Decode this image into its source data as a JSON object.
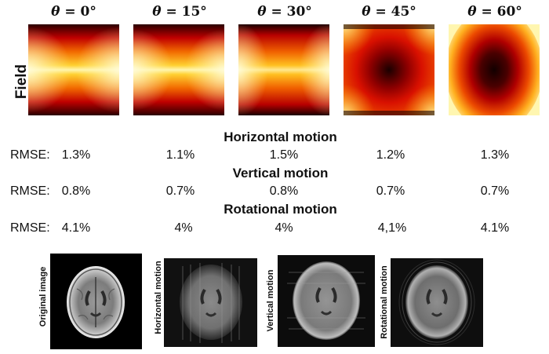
{
  "field_row": {
    "row_label": "Field",
    "theta_symbol": "θ",
    "angles": [
      "= 0°",
      "= 15°",
      "= 30°",
      "= 45°",
      "= 60°"
    ]
  },
  "motion_results": [
    {
      "title": "Horizontal motion",
      "rmse_label": "RMSE:",
      "values": [
        "1.3%",
        "1.1%",
        "1.5%",
        "1.2%",
        "1.3%"
      ]
    },
    {
      "title": "Vertical motion",
      "rmse_label": "RMSE:",
      "values": [
        "0.8%",
        "0.7%",
        "0.8%",
        "0.7%",
        "0.7%"
      ]
    },
    {
      "title": "Rotational motion",
      "rmse_label": "RMSE:",
      "values": [
        "4.1%",
        "4%",
        "4%",
        "4,1%",
        "4.1%"
      ]
    }
  ],
  "scans": {
    "labels": [
      "Original image",
      "Horizontal motion",
      "Vertical motion",
      "Rotational motion"
    ]
  },
  "colors": {
    "field_dark": "#1a0000",
    "field_red": "#c10000",
    "field_orange": "#f07800",
    "field_yellow": "#fff8c0"
  }
}
